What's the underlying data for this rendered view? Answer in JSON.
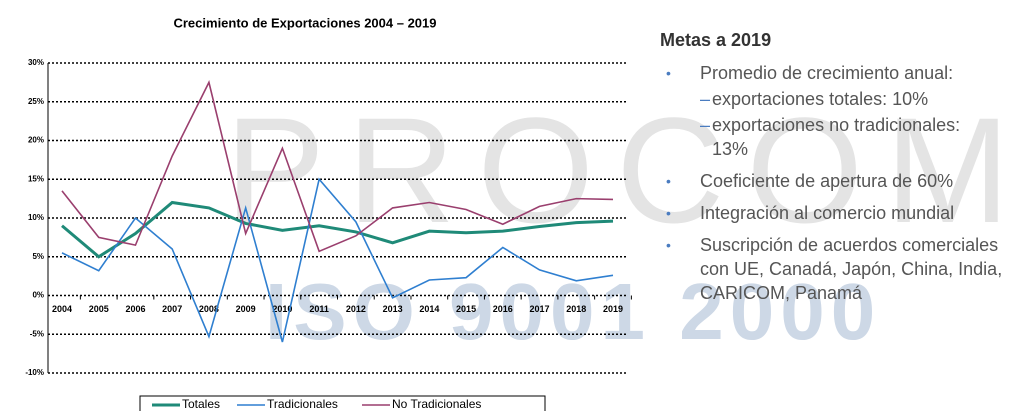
{
  "watermark": [
    "PROCOMER",
    "ISO 9001 2000"
  ],
  "chart_data": {
    "type": "line",
    "title": "Crecimiento de Exportaciones 2004 – 2019",
    "categories": [
      "2004",
      "2005",
      "2006",
      "2007",
      "2008",
      "2009",
      "2010",
      "2011",
      "2012",
      "2013",
      "2014",
      "2015",
      "2016",
      "2017",
      "2018",
      "2019"
    ],
    "series": [
      {
        "name": "Totales",
        "color": "#1f8a78",
        "values": [
          9,
          5,
          8,
          12,
          11.3,
          9.3,
          8.4,
          9,
          8.2,
          6.8,
          8.3,
          8.1,
          8.3,
          8.9,
          9.4,
          9.6
        ]
      },
      {
        "name": "Tradicionales",
        "color": "#2f7fd0",
        "values": [
          5.5,
          3.2,
          10,
          6,
          -5.3,
          11.3,
          -6,
          15,
          9.5,
          -0.3,
          2,
          2.3,
          6.2,
          3.3,
          1.9,
          2.6
        ]
      },
      {
        "name": "No Tradicionales",
        "color": "#9a3f6e",
        "values": [
          13.5,
          7.5,
          6.5,
          18,
          27.5,
          8,
          19,
          5.7,
          7.7,
          11.3,
          12,
          11.1,
          9.2,
          11.5,
          12.5,
          12.4
        ]
      }
    ],
    "ylim": [
      -10,
      30
    ],
    "yticks": [
      {
        "value": -10,
        "label": "-10%"
      },
      {
        "value": -5,
        "label": "-5%"
      },
      {
        "value": 0,
        "label": "0%"
      },
      {
        "value": 5,
        "label": "5%"
      },
      {
        "value": 10,
        "label": "10%"
      },
      {
        "value": 15,
        "label": "15%"
      },
      {
        "value": 20,
        "label": "20%"
      },
      {
        "value": 25,
        "label": "25%"
      },
      {
        "value": 30,
        "label": "30%"
      }
    ],
    "grid": true,
    "legend": "bottom"
  },
  "goals": {
    "title": "Metas a 2019",
    "items": [
      {
        "text": "Promedio de crecimiento anual:",
        "subitems": [
          "exportaciones totales: 10%",
          "exportaciones no tradicionales: 13%"
        ]
      },
      {
        "text": "Coeficiente de apertura de 60%"
      },
      {
        "text": "Integración al comercio mundial"
      },
      {
        "text": "Suscripción de acuerdos comerciales con UE, Canadá, Japón, China, India, CARICOM, Panamá"
      }
    ]
  }
}
